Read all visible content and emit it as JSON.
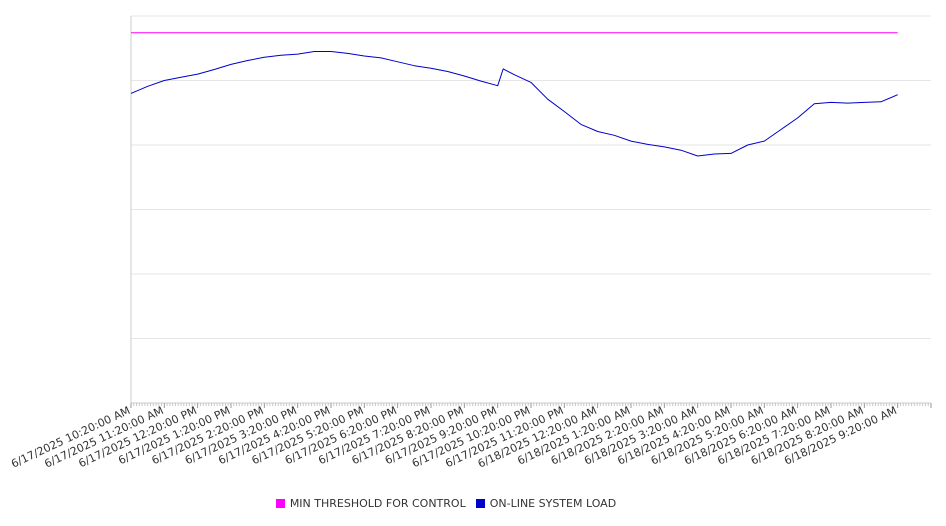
{
  "chart_data": {
    "type": "line",
    "title": "",
    "xlabel": "",
    "ylabel": "",
    "ylim": [
      0,
      6
    ],
    "grid": true,
    "legend_position": "bottom",
    "x_tick_labels": [
      "6/17/2025 10:20:00 AM",
      "6/17/2025 11:20:00 AM",
      "6/17/2025 12:20:00 PM",
      "6/17/2025 1:20:00 PM",
      "6/17/2025 2:20:00 PM",
      "6/17/2025 3:20:00 PM",
      "6/17/2025 4:20:00 PM",
      "6/17/2025 5:20:00 PM",
      "6/17/2025 6:20:00 PM",
      "6/17/2025 7:20:00 PM",
      "6/17/2025 8:20:00 PM",
      "6/17/2025 9:20:00 PM",
      "6/17/2025 10:20:00 PM",
      "6/17/2025 11:20:00 PM",
      "6/18/2025 12:20:00 AM",
      "6/18/2025 1:20:00 AM",
      "6/18/2025 2:20:00 AM",
      "6/18/2025 3:20:00 AM",
      "6/18/2025 4:20:00 AM",
      "6/18/2025 5:20:00 AM",
      "6/18/2025 6:20:00 AM",
      "6/18/2025 7:20:00 AM",
      "6/18/2025 8:20:00 AM",
      "6/18/2025 9:20:00 AM"
    ],
    "series": [
      {
        "name": "MIN THRESHOLD FOR CONTROL",
        "color": "#ff00ff",
        "x": [
          "6/17/2025 10:20:00 AM",
          "6/18/2025 9:20:00 AM"
        ],
        "values": [
          5.74,
          5.74
        ]
      },
      {
        "name": "ON-LINE SYSTEM LOAD",
        "color": "#0000cc",
        "x": [
          "6/17/2025 10:20:00 AM",
          "6/17/2025 10:50:00 AM",
          "6/17/2025 11:20:00 AM",
          "6/17/2025 11:50:00 AM",
          "6/17/2025 12:20:00 PM",
          "6/17/2025 12:50:00 PM",
          "6/17/2025 1:20:00 PM",
          "6/17/2025 1:50:00 PM",
          "6/17/2025 2:20:00 PM",
          "6/17/2025 2:50:00 PM",
          "6/17/2025 3:20:00 PM",
          "6/17/2025 3:50:00 PM",
          "6/17/2025 4:20:00 PM",
          "6/17/2025 4:50:00 PM",
          "6/17/2025 5:20:00 PM",
          "6/17/2025 5:50:00 PM",
          "6/17/2025 6:20:00 PM",
          "6/17/2025 6:50:00 PM",
          "6/17/2025 7:20:00 PM",
          "6/17/2025 7:50:00 PM",
          "6/17/2025 8:20:00 PM",
          "6/17/2025 8:50:00 PM",
          "6/17/2025 9:20:00 PM",
          "6/17/2025 9:30:00 PM",
          "6/17/2025 9:50:00 PM",
          "6/17/2025 10:20:00 PM",
          "6/17/2025 10:50:00 PM",
          "6/17/2025 11:20:00 PM",
          "6/17/2025 11:50:00 PM",
          "6/18/2025 12:20:00 AM",
          "6/18/2025 12:50:00 AM",
          "6/18/2025 1:20:00 AM",
          "6/18/2025 1:50:00 AM",
          "6/18/2025 2:20:00 AM",
          "6/18/2025 2:50:00 AM",
          "6/18/2025 3:20:00 AM",
          "6/18/2025 3:50:00 AM",
          "6/18/2025 4:20:00 AM",
          "6/18/2025 4:50:00 AM",
          "6/18/2025 5:20:00 AM",
          "6/18/2025 5:50:00 AM",
          "6/18/2025 6:20:00 AM",
          "6/18/2025 6:50:00 AM",
          "6/18/2025 7:20:00 AM",
          "6/18/2025 7:50:00 AM",
          "6/18/2025 8:20:00 AM",
          "6/18/2025 8:50:00 AM",
          "6/18/2025 9:20:00 AM"
        ],
        "values": [
          4.8,
          4.91,
          5.0,
          5.05,
          5.1,
          5.17,
          5.25,
          5.31,
          5.36,
          5.39,
          5.41,
          5.45,
          5.45,
          5.42,
          5.38,
          5.35,
          5.29,
          5.23,
          5.19,
          5.14,
          5.07,
          4.99,
          4.92,
          5.18,
          5.09,
          4.97,
          4.71,
          4.52,
          4.32,
          4.21,
          4.15,
          4.06,
          4.01,
          3.97,
          3.92,
          3.83,
          3.86,
          3.87,
          4.0,
          4.06,
          4.24,
          4.42,
          4.64,
          4.66,
          4.65,
          4.66,
          4.67,
          4.78
        ]
      }
    ]
  }
}
